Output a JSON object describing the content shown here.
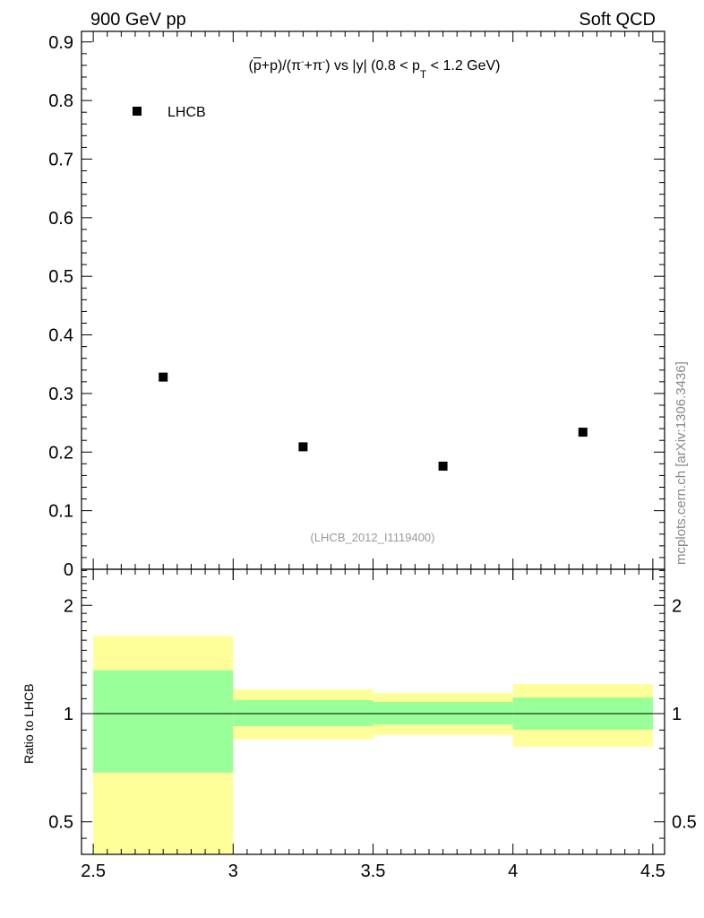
{
  "header": {
    "left": "900 GeV pp",
    "right": "Soft QCD"
  },
  "side_label": "mcplots.cern.ch [arXiv:1306.3436]",
  "title_parts": [
    "(",
    "p",
    "+p)/(π",
    "-",
    "+π",
    "-",
    ") vs |y| (0.8 < p",
    "T",
    " < 1.2 GeV)"
  ],
  "watermark": "(LHCB_2012_I1119400)",
  "colors": {
    "yellow": "#ffff99",
    "green": "#99ff99",
    "marker": "#000000"
  },
  "chart_data": [
    {
      "type": "scatter",
      "title": "(p̄+p)/(π⁻+π⁻) vs |y| (0.8 < pT < 1.2 GeV)",
      "xlim": [
        2.458,
        4.542
      ],
      "ylim": [
        0,
        0.918
      ],
      "yticks": [
        "0",
        "0.1",
        "0.2",
        "0.3",
        "0.4",
        "0.5",
        "0.6",
        "0.7",
        "0.8",
        "0.9"
      ],
      "legend": {
        "entries": [
          "LHCB"
        ],
        "placement": "top-left"
      },
      "series": [
        {
          "name": "LHCB",
          "x": [
            2.75,
            3.25,
            3.75,
            4.25
          ],
          "y": [
            0.328,
            0.209,
            0.176,
            0.234
          ]
        }
      ]
    },
    {
      "type": "area",
      "ylabel": "Ratio to LHCB",
      "yscale": "log",
      "ylim": [
        0.406,
        2.52
      ],
      "yticks": [
        "0.5",
        "1",
        "2"
      ],
      "xticks": [
        "2.5",
        "3",
        "3.5",
        "4",
        "4.5"
      ],
      "bins": [
        [
          2.5,
          3
        ],
        [
          3,
          3.5
        ],
        [
          3.5,
          4
        ],
        [
          4,
          4.5
        ]
      ],
      "yellow_band": [
        [
          0.35,
          1.646
        ],
        [
          0.847,
          1.167
        ],
        [
          0.872,
          1.14
        ],
        [
          0.809,
          1.208
        ]
      ],
      "green_band": [
        [
          0.685,
          1.32
        ],
        [
          0.923,
          1.09
        ],
        [
          0.933,
          1.077
        ],
        [
          0.902,
          1.109
        ]
      ],
      "reference": 1
    }
  ]
}
